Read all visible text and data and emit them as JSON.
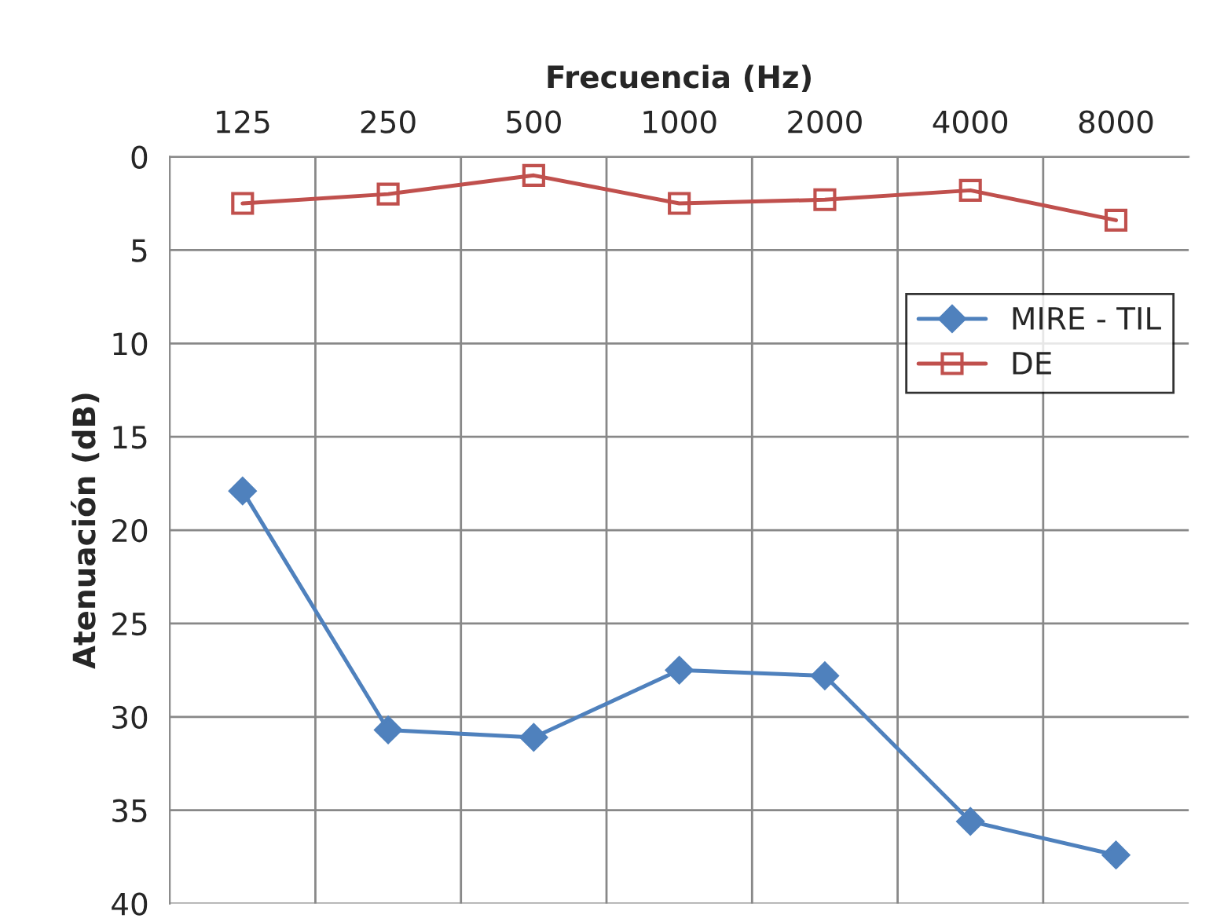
{
  "chart_data": {
    "type": "line",
    "xlabel": "Frecuencia (Hz)",
    "ylabel": "Atenuación (dB)",
    "categories": [
      "125",
      "250",
      "500",
      "1000",
      "2000",
      "4000",
      "8000"
    ],
    "series": [
      {
        "name": "MIRE - TIL",
        "color": "#4f81bd",
        "marker": "diamond",
        "values": [
          17.9,
          30.7,
          31.1,
          27.5,
          27.8,
          35.6,
          37.4
        ]
      },
      {
        "name": "DE",
        "color": "#c0504d",
        "marker": "square",
        "values": [
          2.5,
          2.0,
          1.0,
          2.5,
          2.3,
          1.8,
          3.4
        ]
      }
    ],
    "ylim": [
      40,
      0
    ],
    "yticks": [
      0,
      5,
      10,
      15,
      20,
      25,
      30,
      35,
      40
    ],
    "grid": true,
    "legend": "right",
    "line_style": "solid"
  }
}
